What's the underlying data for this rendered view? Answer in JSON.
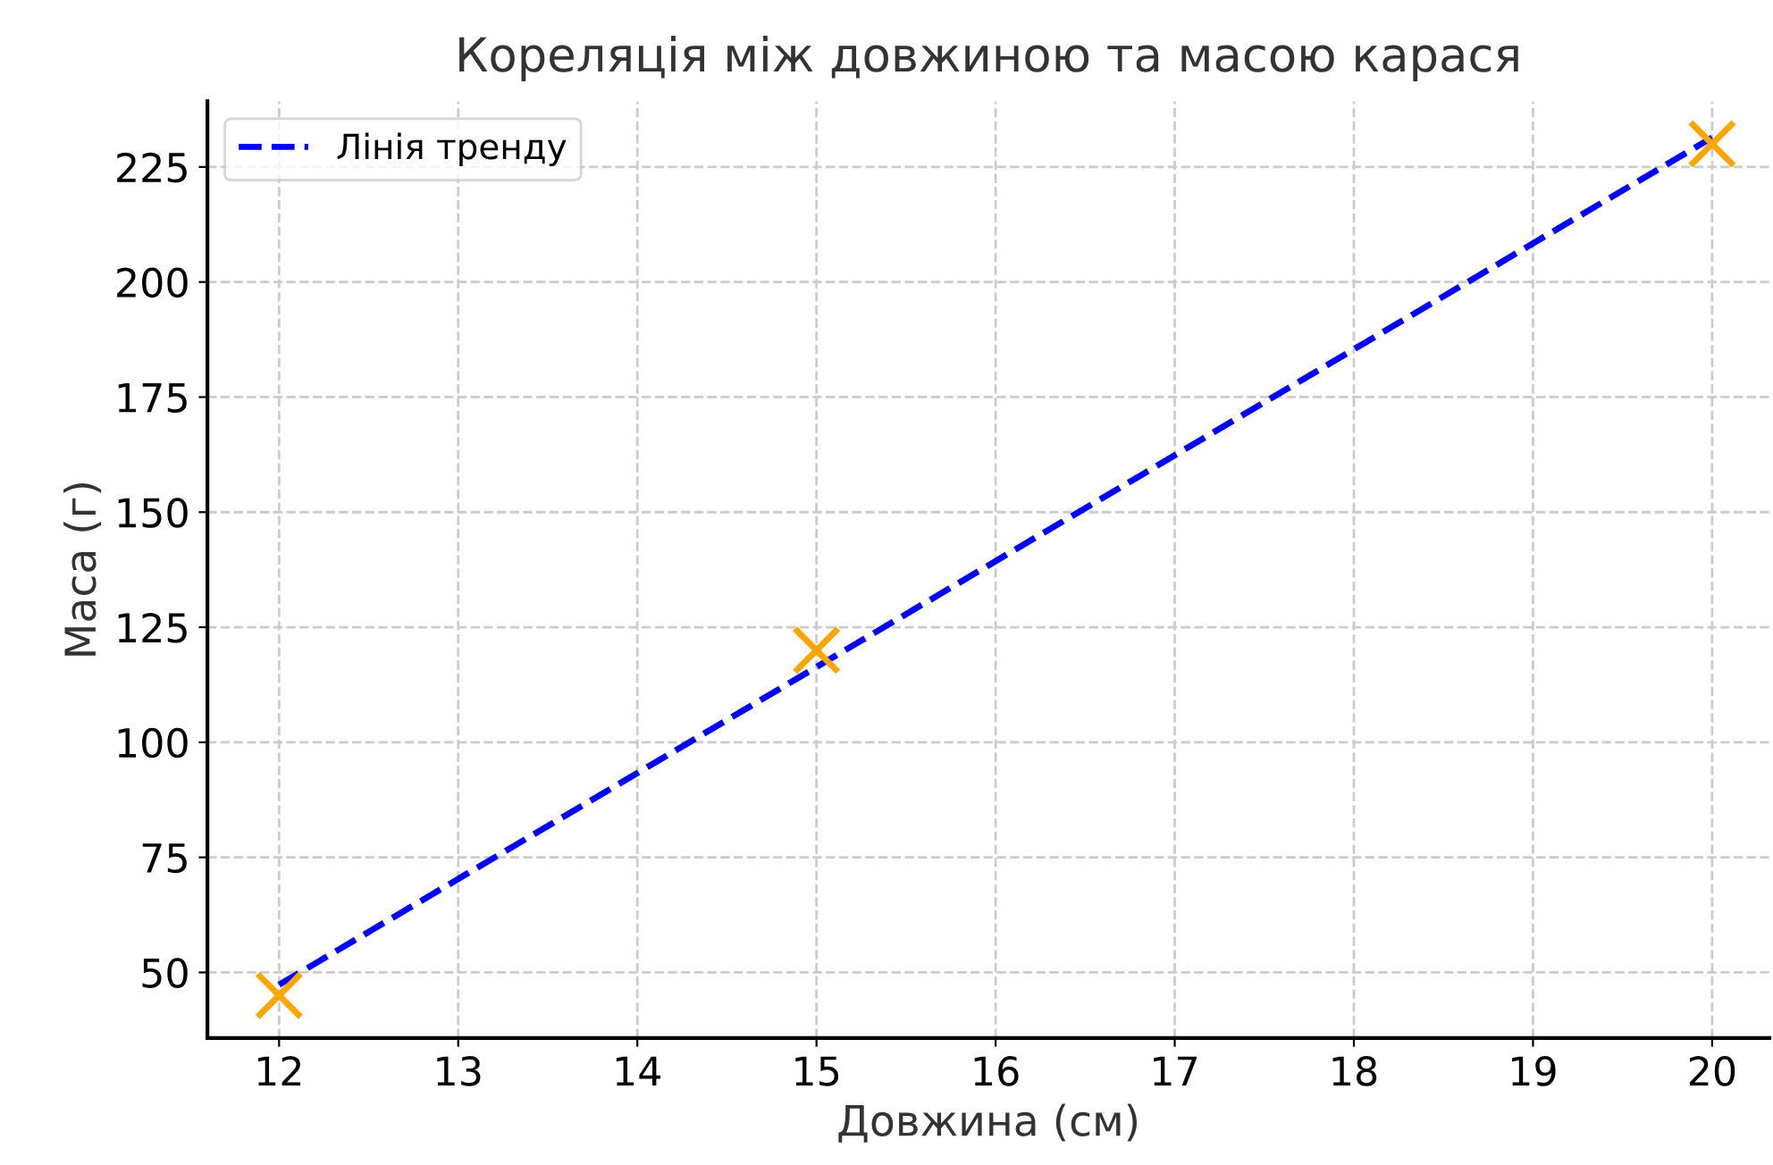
{
  "chart_data": {
    "type": "scatter",
    "title": "Кореляція між довжиною та масою карася",
    "xlabel": "Довжина (см)",
    "ylabel": "Маса (г)",
    "series": [
      {
        "color": "#ffa500",
        "marker": "cross",
        "x": [
          12,
          15,
          20
        ],
        "values": [
          45,
          120,
          230
        ]
      },
      {
        "type": "line",
        "name": "Лінія тренду",
        "color": "#0000ff",
        "line_style": "dashed",
        "marker": "none",
        "x": [
          12,
          20
        ],
        "values": [
          47.3,
          231.4
        ]
      }
    ],
    "xlim": [
      11.6,
      20.32
    ],
    "ylim": [
      35.75,
      239.25
    ],
    "xticks": [
      12,
      13,
      14,
      15,
      16,
      17,
      18,
      19,
      20
    ],
    "yticks": [
      50,
      75,
      100,
      125,
      150,
      175,
      200,
      225
    ],
    "grid": true,
    "legend": "top left"
  }
}
